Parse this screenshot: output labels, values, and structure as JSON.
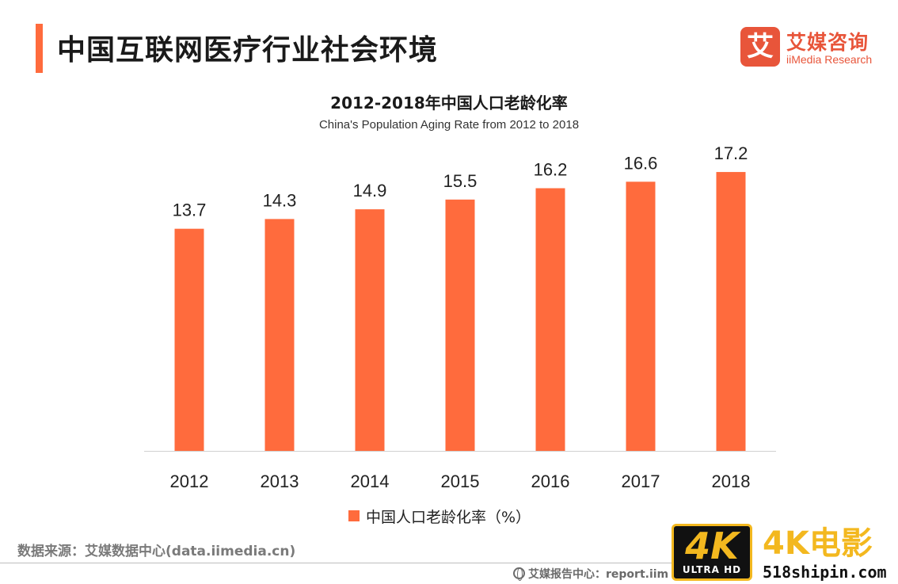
{
  "page": {
    "title": "中国互联网医疗行业社会环境",
    "accent_color": "#ff6b3d"
  },
  "logo": {
    "mark": "艾",
    "name_cn": "艾媒咨询",
    "name_en": "iiMedia Research",
    "color": "#e8553a"
  },
  "chart_data": {
    "type": "bar",
    "title": "2012-2018年中国人口老龄化率",
    "subtitle": "China's Population Aging Rate from 2012 to 2018",
    "categories": [
      "2012",
      "2013",
      "2014",
      "2015",
      "2016",
      "2017",
      "2018"
    ],
    "series": [
      {
        "name": "中国人口老龄化率（%）",
        "values": [
          13.7,
          14.3,
          14.9,
          15.5,
          16.2,
          16.6,
          17.2
        ],
        "color": "#ff6b3d"
      }
    ],
    "value_labels": [
      "13.7",
      "14.3",
      "14.9",
      "15.5",
      "16.2",
      "16.6",
      "17.2"
    ],
    "xlabel": "",
    "ylabel": "",
    "ylim": [
      0,
      19.5
    ],
    "grid": false,
    "legend": "bottom-center"
  },
  "footer": {
    "source": "数据来源：艾媒数据中心(data.iimedia.cn)",
    "report": "艾媒报告中心：report.iim"
  },
  "watermark": {
    "badge_main": "4K",
    "badge_sub": "ULTRA HD",
    "title": "4K电影",
    "url": "518shipin.com",
    "color": "#f3b81f"
  }
}
